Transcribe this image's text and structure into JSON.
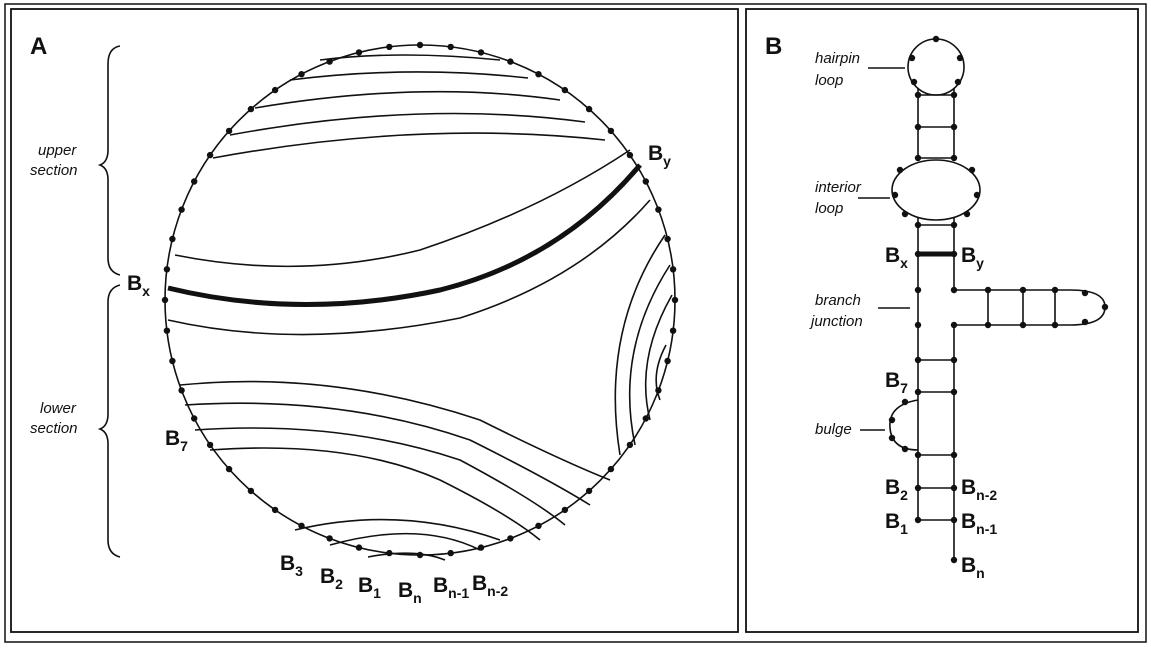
{
  "panels": {
    "a": {
      "letter": "A",
      "sections": {
        "upper": [
          "upper",
          "section"
        ],
        "lower": [
          "lower",
          "section"
        ]
      },
      "labels": {
        "bx": "B",
        "bx_sub": "x",
        "by": "B",
        "by_sub": "y",
        "b7": "B",
        "b7_sub": "7",
        "b3": "B",
        "b3_sub": "3",
        "b2": "B",
        "b2_sub": "2",
        "b1": "B",
        "b1_sub": "1",
        "bn": "B",
        "bn_sub": "n",
        "bn1": "B",
        "bn1_sub": "n-1",
        "bn2": "B",
        "bn2_sub": "n-2"
      }
    },
    "b": {
      "letter": "B",
      "annotations": {
        "hairpin": [
          "hairpin",
          "loop"
        ],
        "interior": [
          "interior",
          "loop"
        ],
        "branch": [
          "branch",
          "junction"
        ],
        "bulge": [
          "bulge"
        ]
      },
      "labels": {
        "bx": "B",
        "bx_sub": "x",
        "by": "B",
        "by_sub": "y",
        "b7": "B",
        "b7_sub": "7",
        "b2": "B",
        "b2_sub": "2",
        "b1": "B",
        "b1_sub": "1",
        "bn2": "B",
        "bn2_sub": "n-2",
        "bn1": "B",
        "bn1_sub": "n-1",
        "bn": "B",
        "bn_sub": "n"
      }
    }
  }
}
